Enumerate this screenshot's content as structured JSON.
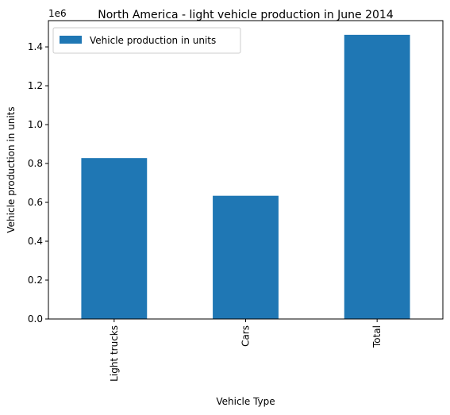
{
  "chart_data": {
    "type": "bar",
    "title": "North America - light vehicle production in June 2014",
    "xlabel": "Vehicle Type",
    "ylabel": "Vehicle production in units",
    "scale_label": "1e6",
    "categories": [
      "Light trucks",
      "Cars",
      "Total"
    ],
    "series": [
      {
        "name": "Vehicle production in units",
        "values": [
          828000,
          634000,
          1462000
        ],
        "color": "#1f77b4"
      }
    ],
    "ylim": [
      0,
      1535000
    ],
    "yticks": [
      0,
      200000,
      400000,
      600000,
      800000,
      1000000,
      1200000,
      1400000
    ],
    "ytick_labels": [
      "0.0",
      "0.2",
      "0.4",
      "0.6",
      "0.8",
      "1.0",
      "1.2",
      "1.4"
    ],
    "grid": false,
    "legend_position": "top-left"
  }
}
